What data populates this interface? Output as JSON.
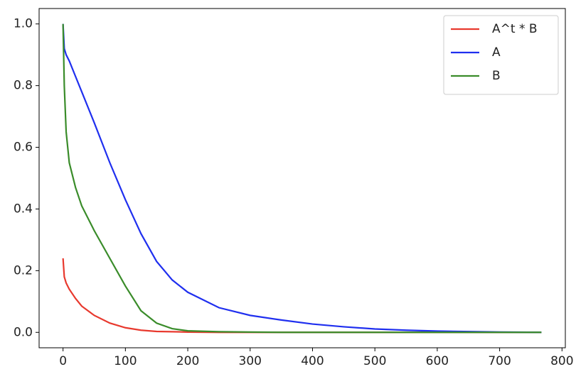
{
  "chart_data": {
    "type": "line",
    "x": [
      0,
      2,
      5,
      10,
      20,
      30,
      50,
      75,
      100,
      125,
      150,
      175,
      200,
      250,
      300,
      350,
      400,
      450,
      500,
      550,
      600,
      700,
      767
    ],
    "series": [
      {
        "name": "A^t * B",
        "color": "#e8392e",
        "values": [
          0.24,
          0.18,
          0.16,
          0.14,
          0.11,
          0.085,
          0.055,
          0.03,
          0.015,
          0.007,
          0.003,
          0.002,
          0.001,
          0,
          0,
          0,
          0,
          0,
          0,
          0,
          0,
          0,
          0
        ]
      },
      {
        "name": "A",
        "color": "#1f2fef",
        "values": [
          1.0,
          0.92,
          0.9,
          0.88,
          0.83,
          0.78,
          0.68,
          0.55,
          0.43,
          0.32,
          0.23,
          0.17,
          0.13,
          0.08,
          0.055,
          0.04,
          0.027,
          0.018,
          0.011,
          0.007,
          0.004,
          0.001,
          0
        ]
      },
      {
        "name": "B",
        "color": "#3a8c2a",
        "values": [
          1.0,
          0.8,
          0.65,
          0.55,
          0.47,
          0.41,
          0.33,
          0.24,
          0.15,
          0.07,
          0.03,
          0.012,
          0.005,
          0.002,
          0.001,
          0,
          0,
          0,
          0,
          0,
          0,
          0,
          0
        ]
      }
    ],
    "xlim": [
      -38.35,
      805.35
    ],
    "ylim": [
      -0.05,
      1.05
    ],
    "xticks": [
      0,
      100,
      200,
      300,
      400,
      500,
      600,
      700,
      800
    ],
    "yticks": [
      {
        "value": 0,
        "label": "0.0"
      },
      0.2,
      0.4,
      0.6,
      0.8,
      {
        "value": 1,
        "label": "1.0"
      }
    ],
    "legend": "upper right",
    "grid": false
  }
}
